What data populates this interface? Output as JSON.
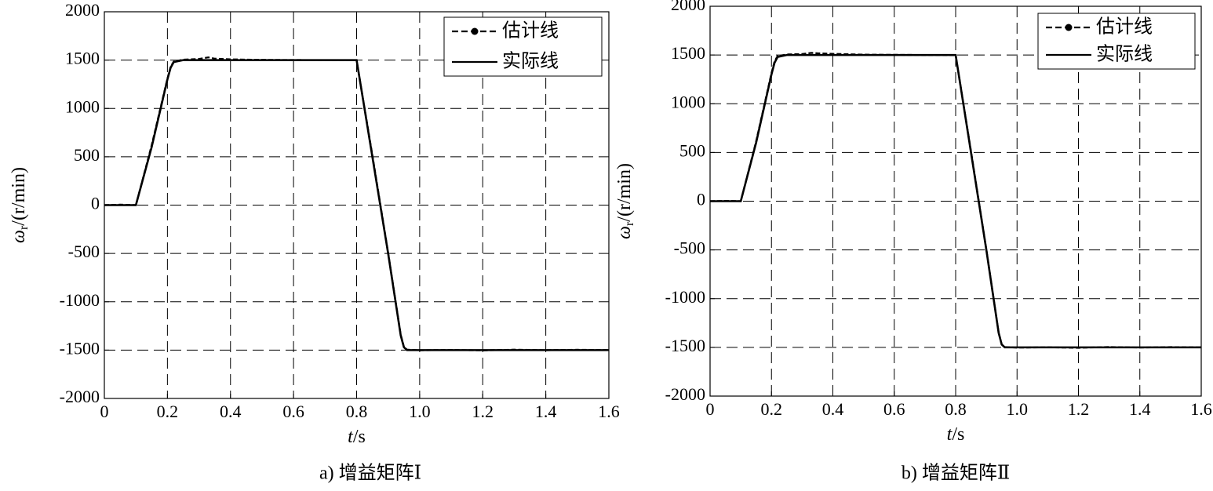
{
  "chart_data": [
    {
      "type": "line",
      "caption": "a) 增益矩阵Ⅰ",
      "xlabel": {
        "symbol": "t",
        "unit": "/s"
      },
      "ylabel": {
        "symbol": "ω",
        "subscript": "r",
        "unit": "/(r/min)"
      },
      "x": [
        0,
        0.05,
        0.1,
        0.15,
        0.2,
        0.21,
        0.22,
        0.25,
        0.3,
        0.33,
        0.35,
        0.4,
        0.5,
        0.6,
        0.7,
        0.8,
        0.85,
        0.9,
        0.94,
        0.95,
        0.96,
        1.0,
        1.1,
        1.2,
        1.3,
        1.4,
        1.5,
        1.6
      ],
      "series": [
        {
          "name": "估计线",
          "color": "#000000",
          "linestyle": "dashed",
          "marker": "o",
          "values": [
            0,
            5,
            0,
            620,
            1310,
            1430,
            1485,
            1505,
            1512,
            1528,
            1515,
            1508,
            1503,
            1501,
            1500,
            1498,
            520,
            -490,
            -1340,
            -1465,
            -1495,
            -1502,
            -1498,
            -1503,
            -1495,
            -1501,
            -1496,
            -1500
          ]
        },
        {
          "name": "实际线",
          "color": "#000000",
          "linestyle": "solid",
          "values": [
            0,
            0,
            0,
            600,
            1300,
            1420,
            1480,
            1500,
            1500,
            1500,
            1500,
            1500,
            1500,
            1500,
            1500,
            1500,
            500,
            -500,
            -1350,
            -1470,
            -1500,
            -1500,
            -1500,
            -1500,
            -1500,
            -1500,
            -1500,
            -1500
          ]
        }
      ],
      "xlim": [
        0,
        1.6
      ],
      "xticks": [
        0,
        0.2,
        0.4,
        0.6,
        0.8,
        {
          "value": 1,
          "label": "1.0"
        },
        1.2,
        1.4,
        1.6
      ],
      "ylim": [
        -2000,
        2000
      ],
      "yticks": [
        -2000,
        -1500,
        -1000,
        -500,
        0,
        500,
        1000,
        1500,
        2000
      ],
      "grid": true,
      "legend": "upper-right"
    },
    {
      "type": "line",
      "caption": "b) 增益矩阵Ⅱ",
      "xlabel": {
        "symbol": "t",
        "unit": "/s"
      },
      "ylabel": {
        "symbol": "ω",
        "subscript": "r",
        "unit": "/(r/min)"
      },
      "x": [
        0,
        0.05,
        0.1,
        0.15,
        0.2,
        0.21,
        0.22,
        0.25,
        0.3,
        0.33,
        0.35,
        0.4,
        0.5,
        0.6,
        0.7,
        0.8,
        0.85,
        0.9,
        0.94,
        0.95,
        0.96,
        1.0,
        1.1,
        1.2,
        1.3,
        1.4,
        1.5,
        1.6
      ],
      "series": [
        {
          "name": "估计线",
          "color": "#000000",
          "linestyle": "dashed",
          "marker": "o",
          "values": [
            0,
            3,
            0,
            615,
            1315,
            1435,
            1490,
            1506,
            1510,
            1522,
            1518,
            1512,
            1504,
            1502,
            1500,
            1499,
            515,
            -495,
            -1345,
            -1470,
            -1497,
            -1503,
            -1499,
            -1505,
            -1496,
            -1502,
            -1497,
            -1500
          ]
        },
        {
          "name": "实际线",
          "color": "#000000",
          "linestyle": "solid",
          "values": [
            0,
            0,
            0,
            600,
            1300,
            1420,
            1480,
            1500,
            1500,
            1500,
            1500,
            1500,
            1500,
            1500,
            1500,
            1500,
            500,
            -500,
            -1350,
            -1470,
            -1500,
            -1500,
            -1500,
            -1500,
            -1500,
            -1500,
            -1500,
            -1500
          ]
        }
      ],
      "xlim": [
        0,
        1.6
      ],
      "xticks": [
        0,
        0.2,
        0.4,
        0.6,
        0.8,
        {
          "value": 1,
          "label": "1.0"
        },
        1.2,
        1.4,
        1.6
      ],
      "ylim": [
        -2000,
        2000
      ],
      "yticks": [
        -2000,
        -1500,
        -1000,
        -500,
        0,
        500,
        1000,
        1500,
        2000
      ],
      "grid": true,
      "legend": "upper-right"
    }
  ]
}
